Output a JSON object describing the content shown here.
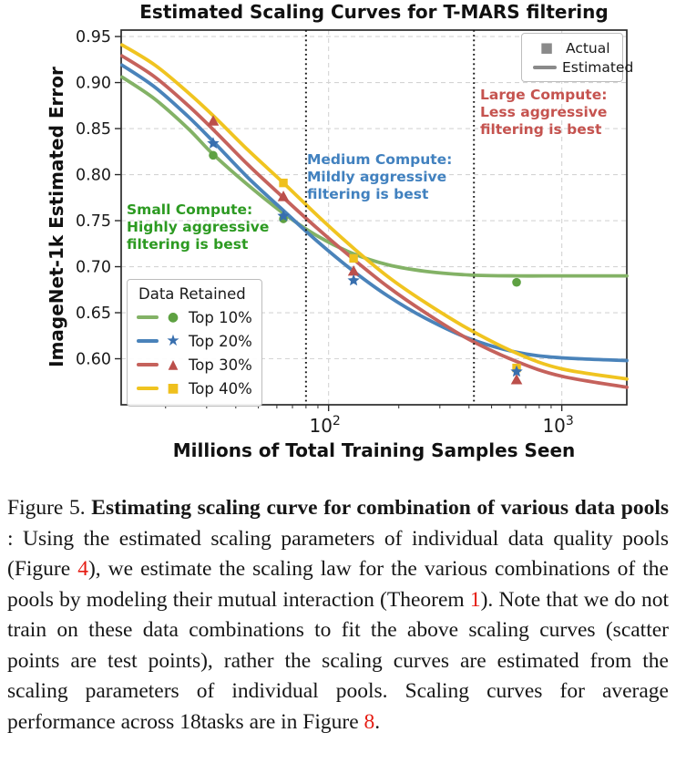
{
  "chart_data": {
    "type": "line",
    "title": "Estimated Scaling Curves for T-MARS filtering",
    "xlabel": "Millions of Total Training Samples Seen",
    "ylabel": "ImageNet-1k Estimated Error",
    "xscale": "log",
    "xlim": [
      12.9,
      1900
    ],
    "ylim": [
      0.55,
      0.957
    ],
    "grid": true,
    "yticks": [
      {
        "value": 0.95,
        "label": "0.95"
      },
      {
        "value": 0.9,
        "label": "0.90"
      },
      {
        "value": 0.85,
        "label": "0.85"
      },
      {
        "value": 0.8,
        "label": "0.80"
      },
      {
        "value": 0.75,
        "label": "0.75"
      },
      {
        "value": 0.7,
        "label": "0.70"
      },
      {
        "value": 0.65,
        "label": "0.65"
      },
      {
        "value": 0.6,
        "label": "0.60"
      }
    ],
    "xticks": [
      {
        "value": 100,
        "base": "10",
        "exp": "2"
      },
      {
        "value": 1000,
        "base": "10",
        "exp": "3"
      }
    ],
    "vlines": [
      {
        "x": 80
      },
      {
        "x": 420
      }
    ],
    "series": [
      {
        "name": "Top 10%",
        "slug": "top-10",
        "marker": "circle",
        "glyph": "●",
        "line_color": "#83b266",
        "marker_color": "#5ea142",
        "estimated_curve": [
          [
            13,
            0.906
          ],
          [
            18,
            0.882
          ],
          [
            25,
            0.85
          ],
          [
            32,
            0.822
          ],
          [
            45,
            0.789
          ],
          [
            64,
            0.758
          ],
          [
            90,
            0.733
          ],
          [
            128,
            0.714
          ],
          [
            180,
            0.702
          ],
          [
            260,
            0.695
          ],
          [
            400,
            0.691
          ],
          [
            640,
            0.69
          ],
          [
            1000,
            0.69
          ],
          [
            1900,
            0.69
          ]
        ],
        "actual_points": [
          [
            32,
            0.821
          ],
          [
            64,
            0.752
          ],
          [
            640,
            0.683
          ]
        ]
      },
      {
        "name": "Top 20%",
        "slug": "top-20",
        "marker": "star",
        "glyph": "★",
        "line_color": "#4a83ba",
        "marker_color": "#386fae",
        "estimated_curve": [
          [
            13,
            0.919
          ],
          [
            18,
            0.895
          ],
          [
            25,
            0.863
          ],
          [
            32,
            0.836
          ],
          [
            45,
            0.797
          ],
          [
            64,
            0.761
          ],
          [
            90,
            0.727
          ],
          [
            128,
            0.695
          ],
          [
            180,
            0.668
          ],
          [
            260,
            0.644
          ],
          [
            400,
            0.622
          ],
          [
            640,
            0.607
          ],
          [
            1000,
            0.601
          ],
          [
            1900,
            0.598
          ]
        ],
        "actual_points": [
          [
            32,
            0.834
          ],
          [
            64,
            0.755
          ],
          [
            128,
            0.685
          ],
          [
            640,
            0.586
          ]
        ]
      },
      {
        "name": "Top 30%",
        "slug": "top-30",
        "marker": "triangle",
        "glyph": "▲",
        "line_color": "#c5625c",
        "marker_color": "#bb4f4b",
        "estimated_curve": [
          [
            13,
            0.929
          ],
          [
            18,
            0.906
          ],
          [
            25,
            0.875
          ],
          [
            32,
            0.849
          ],
          [
            45,
            0.811
          ],
          [
            64,
            0.775
          ],
          [
            90,
            0.741
          ],
          [
            128,
            0.708
          ],
          [
            180,
            0.678
          ],
          [
            260,
            0.65
          ],
          [
            400,
            0.621
          ],
          [
            640,
            0.597
          ],
          [
            1000,
            0.581
          ],
          [
            1900,
            0.569
          ]
        ],
        "actual_points": [
          [
            32,
            0.858
          ],
          [
            64,
            0.776
          ],
          [
            128,
            0.695
          ],
          [
            640,
            0.577
          ]
        ]
      },
      {
        "name": "Top 40%",
        "slug": "top-40",
        "marker": "square",
        "glyph": "■",
        "line_color": "#f0c420",
        "marker_color": "#efc01d",
        "estimated_curve": [
          [
            13,
            0.941
          ],
          [
            18,
            0.919
          ],
          [
            25,
            0.889
          ],
          [
            32,
            0.864
          ],
          [
            45,
            0.827
          ],
          [
            64,
            0.791
          ],
          [
            90,
            0.755
          ],
          [
            128,
            0.72
          ],
          [
            180,
            0.689
          ],
          [
            260,
            0.661
          ],
          [
            400,
            0.632
          ],
          [
            640,
            0.606
          ],
          [
            1000,
            0.589
          ],
          [
            1900,
            0.578
          ]
        ],
        "actual_points": [
          [
            64,
            0.791
          ],
          [
            128,
            0.709
          ],
          [
            640,
            0.59
          ]
        ]
      }
    ],
    "marker_legend": {
      "color": "#8a8a8a",
      "items": [
        {
          "label": "Actual",
          "symbol": "square"
        },
        {
          "label": "Estimated",
          "symbol": "line"
        }
      ]
    },
    "series_legend": {
      "title": "Data Retained"
    },
    "annotations": [
      {
        "slug": "small-compute",
        "x": 139,
        "y": 221,
        "color": "#2c9a21",
        "text": "Small Compute:\nHighly aggressive\nfiltering is best"
      },
      {
        "slug": "medium-compute",
        "x": 337,
        "y": 166,
        "color": "#4181bf",
        "text": "Medium Compute:\nMildly aggressive\nfiltering is best"
      },
      {
        "slug": "large-compute",
        "x": 527,
        "y": 95,
        "color": "#c5534f",
        "text": "Large Compute:\nLess aggressive\nfiltering is best"
      }
    ]
  },
  "caption": {
    "ref_color": "#e51b12",
    "runs": [
      {
        "t": "Figure 5. ",
        "s": "normal"
      },
      {
        "t": "Estimating scaling curve for combination of various data pools",
        "s": "bold"
      },
      {
        "t": " : Using the estimated scaling parameters of individual data quality pools (Figure ",
        "s": "normal"
      },
      {
        "t": "4",
        "s": "ref"
      },
      {
        "t": "), we estimate the scaling law for the various combinations of the pools by modeling their mutual interaction (Theorem ",
        "s": "normal"
      },
      {
        "t": "1",
        "s": "ref"
      },
      {
        "t": "). Note that we do not train on these data combinations to fit the above scaling curves (scatter points are test points), rather the scaling curves are estimated from the scaling parameters of individual pools. Scaling curves for average performance across 18tasks are in Figure ",
        "s": "normal"
      },
      {
        "t": "8",
        "s": "ref"
      },
      {
        "t": ".",
        "s": "normal"
      }
    ]
  }
}
